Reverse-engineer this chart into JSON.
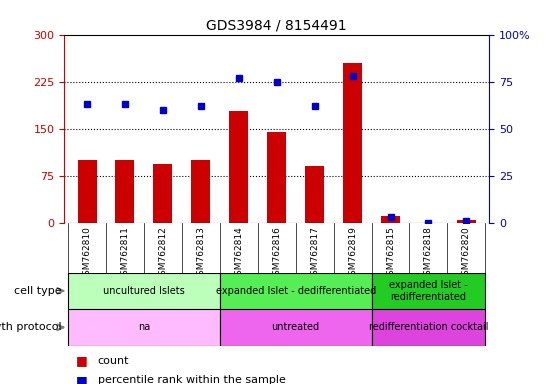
{
  "title": "GDS3984 / 8154491",
  "samples": [
    "GSM762810",
    "GSM762811",
    "GSM762812",
    "GSM762813",
    "GSM762814",
    "GSM762816",
    "GSM762817",
    "GSM762819",
    "GSM762815",
    "GSM762818",
    "GSM762820"
  ],
  "counts": [
    100,
    100,
    93,
    100,
    178,
    145,
    90,
    255,
    10,
    0,
    5
  ],
  "percentile_ranks": [
    63,
    63,
    60,
    62,
    77,
    75,
    62,
    78,
    3,
    0,
    1
  ],
  "ylim_left": [
    0,
    300
  ],
  "ylim_right": [
    0,
    100
  ],
  "yticks_left": [
    0,
    75,
    150,
    225,
    300
  ],
  "ytick_labels_left": [
    "0",
    "75",
    "150",
    "225",
    "300"
  ],
  "yticks_right": [
    0,
    25,
    50,
    75,
    100
  ],
  "ytick_labels_right": [
    "0",
    "25",
    "50",
    "75",
    "100%"
  ],
  "cell_type_groups": [
    {
      "label": "uncultured Islets",
      "start": 0,
      "end": 4,
      "color": "#bbffbb"
    },
    {
      "label": "expanded Islet - dedifferentiated",
      "start": 4,
      "end": 8,
      "color": "#55ee55"
    },
    {
      "label": "expanded Islet -\nredifferentiated",
      "start": 8,
      "end": 11,
      "color": "#22cc22"
    }
  ],
  "growth_protocol_groups": [
    {
      "label": "na",
      "start": 0,
      "end": 4,
      "color": "#ffbbff"
    },
    {
      "label": "untreated",
      "start": 4,
      "end": 8,
      "color": "#ee66ee"
    },
    {
      "label": "redifferentiation cocktail",
      "start": 8,
      "end": 11,
      "color": "#dd44dd"
    }
  ],
  "bar_color": "#cc0000",
  "dot_color": "#0000cc",
  "tick_color_left": "#cc0000",
  "tick_color_right": "#0000cc",
  "plot_bg": "#f0f0f0",
  "xticklabel_bg": "#d8d8d8",
  "bar_width": 0.5,
  "dot_size": 5
}
